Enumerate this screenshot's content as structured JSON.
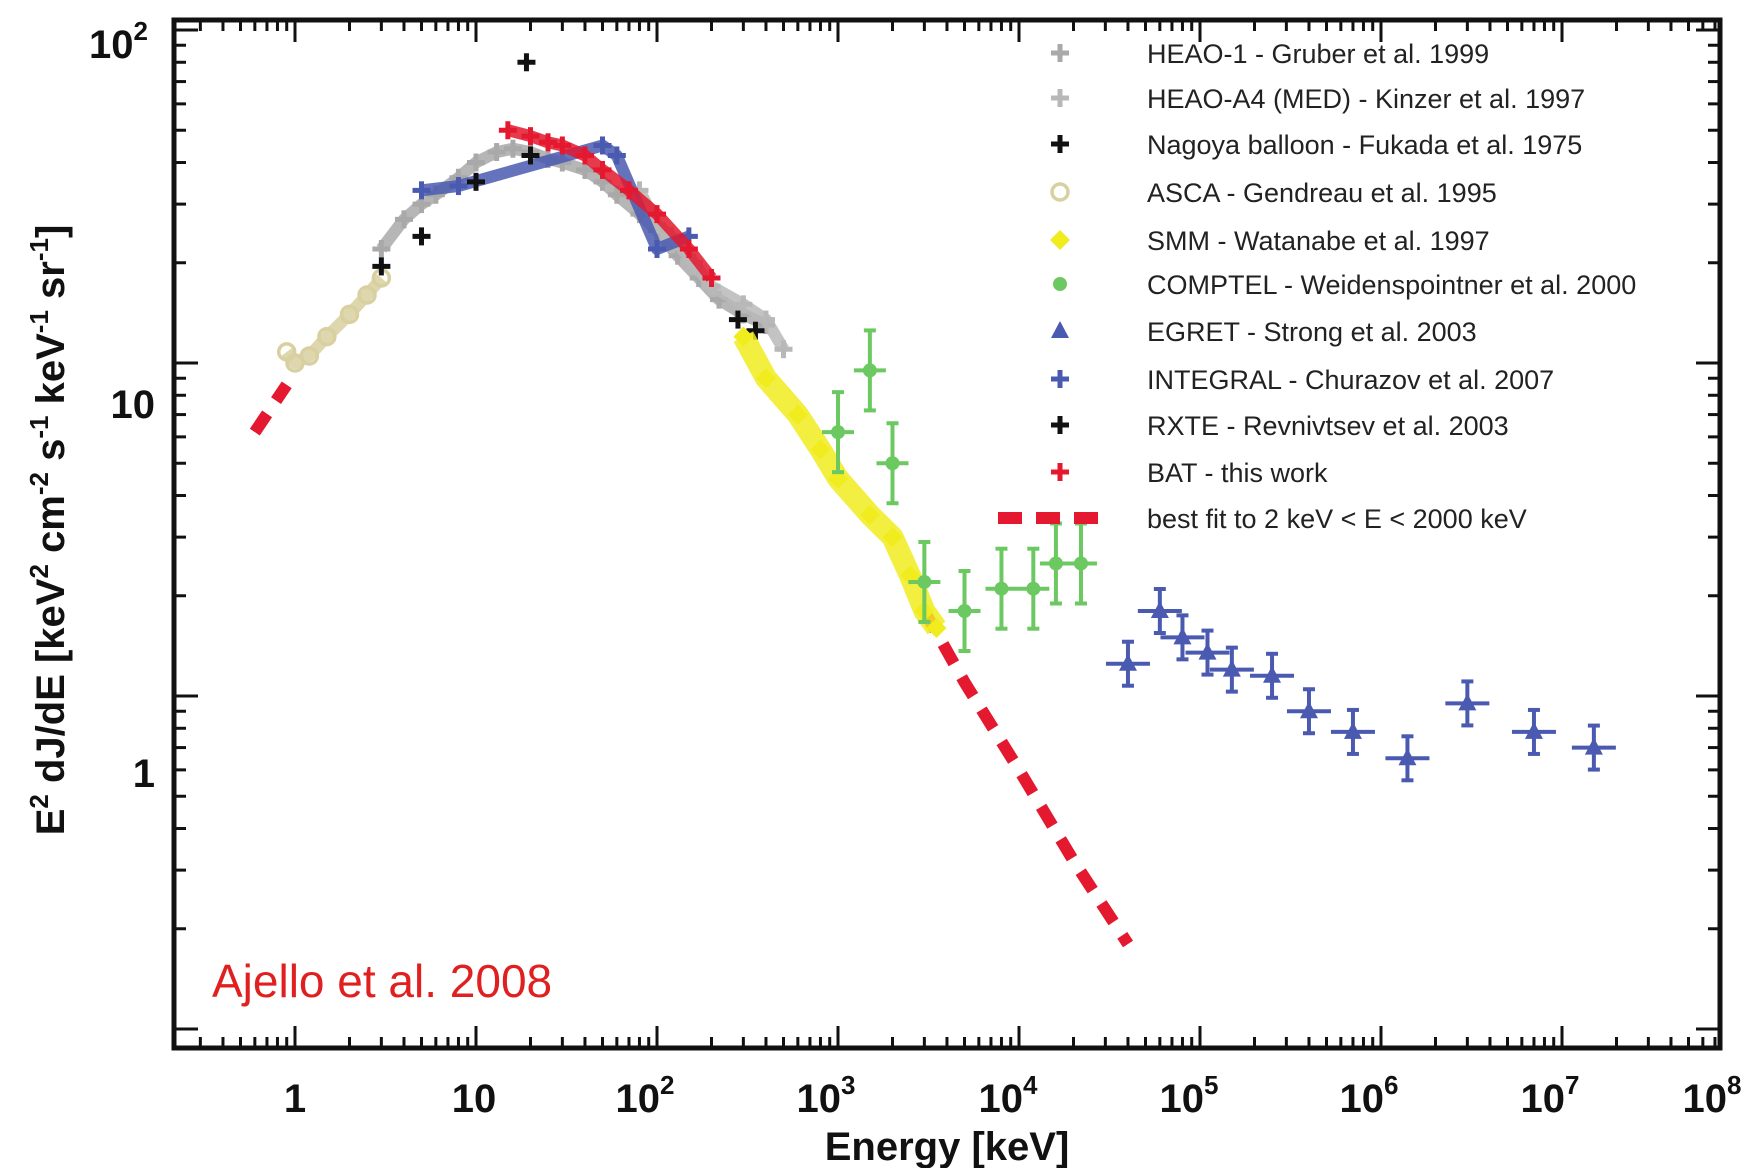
{
  "chart_data": {
    "type": "scatter",
    "title": "",
    "xlabel": "Energy [keV]",
    "ylabel_parts": {
      "a": "E",
      "a_sup": "2",
      "b": " dJ/dE [keV",
      "b_sup": "2",
      "c": " cm",
      "c_sup": "-2",
      "d": " s",
      "d_sup": "-1",
      "e": " keV",
      "e_sup": "-1",
      "f": " sr",
      "f_sup": "-1",
      "g": "]"
    },
    "xscale": "log",
    "yscale": "log",
    "xlim": [
      0.15,
      100000000
    ],
    "ylim": [
      0.18,
      100
    ],
    "x_ticks": [
      {
        "base": "1",
        "exp": ""
      },
      {
        "base": "10",
        "exp": ""
      },
      {
        "base": "10",
        "exp": "2"
      },
      {
        "base": "10",
        "exp": "3"
      },
      {
        "base": "10",
        "exp": "4"
      },
      {
        "base": "10",
        "exp": "5"
      },
      {
        "base": "10",
        "exp": "6"
      },
      {
        "base": "10",
        "exp": "7"
      },
      {
        "base": "10",
        "exp": "8"
      }
    ],
    "y_ticks": [
      {
        "base": "10",
        "exp": "2"
      },
      {
        "base": "10",
        "exp": ""
      },
      {
        "base": "1",
        "exp": ""
      }
    ],
    "legend_position": "top-right",
    "annotation": "Ajello et al. 2008",
    "series": [
      {
        "name": "HEAO-1 - Gruber et al. 1999",
        "marker": "plus",
        "color": "#a9a9a9",
        "points": [
          [
            3,
            22
          ],
          [
            4,
            27
          ],
          [
            5,
            30
          ],
          [
            6,
            32
          ],
          [
            8,
            36
          ],
          [
            10,
            40
          ],
          [
            13,
            43
          ],
          [
            16,
            44
          ],
          [
            20,
            43
          ],
          [
            25,
            41
          ],
          [
            30,
            40
          ],
          [
            40,
            38
          ],
          [
            50,
            35
          ],
          [
            60,
            32
          ],
          [
            80,
            28
          ],
          [
            100,
            25
          ],
          [
            130,
            21
          ],
          [
            170,
            18
          ],
          [
            220,
            15.5
          ],
          [
            300,
            14
          ],
          [
            400,
            13
          ]
        ]
      },
      {
        "name": "HEAO-A4 (MED) - Kinzer et al. 1997",
        "marker": "plus",
        "color": "#b8b8b8",
        "points": [
          [
            80,
            33
          ],
          [
            100,
            26
          ],
          [
            120,
            24
          ],
          [
            160,
            20
          ],
          [
            200,
            17
          ],
          [
            300,
            15
          ],
          [
            400,
            13.5
          ],
          [
            500,
            11
          ]
        ]
      },
      {
        "name": "Nagoya balloon - Fukada et al. 1975",
        "marker": "plus",
        "color": "#111111",
        "points": [
          [
            19,
            80
          ],
          [
            280,
            13.5
          ],
          [
            350,
            12.5
          ]
        ]
      },
      {
        "name": "ASCA - Gendreau et al. 1995",
        "marker": "circle",
        "color": "#d8d0a0",
        "points": [
          [
            0.9,
            10.8
          ],
          [
            1,
            10
          ],
          [
            1.2,
            10.5
          ],
          [
            1.5,
            12
          ],
          [
            2,
            14
          ],
          [
            2.5,
            16
          ],
          [
            3,
            18
          ]
        ]
      },
      {
        "name": "SMM - Watanabe et al. 1997",
        "marker": "diamond",
        "color": "#f0ec1e",
        "points": [
          [
            300,
            12
          ],
          [
            400,
            9
          ],
          [
            600,
            7
          ],
          [
            800,
            5.5
          ],
          [
            1000,
            4.5
          ],
          [
            1500,
            3.5
          ],
          [
            2000,
            3
          ],
          [
            2500,
            2.3
          ],
          [
            3000,
            1.8
          ],
          [
            3500,
            1.6
          ]
        ]
      },
      {
        "name": "COMPTEL - Weidenspointner et al. 2000",
        "marker": "dot",
        "color": "#6cc860",
        "points": [
          [
            1000,
            6.2
          ],
          [
            1500,
            9.5
          ],
          [
            2000,
            5
          ],
          [
            3000,
            2.2
          ],
          [
            5000,
            1.8
          ],
          [
            8000,
            2.1
          ],
          [
            12000,
            2.1
          ],
          [
            16000,
            2.5
          ],
          [
            22000,
            2.5
          ]
        ]
      },
      {
        "name": "EGRET - Strong et al. 2003",
        "marker": "triangle",
        "color": "#4a5ab0",
        "points": [
          [
            40000,
            1.25
          ],
          [
            60000,
            1.8
          ],
          [
            80000,
            1.5
          ],
          [
            110000,
            1.35
          ],
          [
            150000,
            1.2
          ],
          [
            250000,
            1.15
          ],
          [
            400000,
            0.9
          ],
          [
            700000,
            0.78
          ],
          [
            1400000,
            0.65
          ],
          [
            3000000,
            0.95
          ],
          [
            7000000,
            0.78
          ],
          [
            15000000,
            0.7
          ]
        ]
      },
      {
        "name": "INTEGRAL - Churazov et al. 2007",
        "marker": "plus",
        "color": "#4a5ab0",
        "points": [
          [
            5,
            33
          ],
          [
            8,
            34
          ],
          [
            50,
            45
          ],
          [
            60,
            42
          ],
          [
            100,
            22
          ],
          [
            150,
            24
          ]
        ]
      },
      {
        "name": "RXTE - Revnivtsev et al. 2003",
        "marker": "plus",
        "color": "#111111",
        "points": [
          [
            3,
            19.5
          ],
          [
            5,
            24
          ],
          [
            10,
            35
          ],
          [
            20,
            42
          ]
        ]
      },
      {
        "name": "BAT - this work",
        "marker": "plus",
        "color": "#e4182e",
        "points": [
          [
            15,
            50
          ],
          [
            20,
            48
          ],
          [
            25,
            46
          ],
          [
            30,
            45
          ],
          [
            40,
            42
          ],
          [
            50,
            38
          ],
          [
            70,
            33
          ],
          [
            100,
            28
          ],
          [
            150,
            22
          ],
          [
            200,
            18
          ]
        ]
      },
      {
        "name": "best fit to 2 keV < E < 2000 keV",
        "marker": "dashed-line",
        "color": "#e4182e",
        "points": [
          [
            0.6,
            6.2
          ],
          [
            0.9,
            8.6
          ],
          [
            3000,
            1.8
          ],
          [
            5000,
            1.1
          ],
          [
            10000,
            0.6
          ],
          [
            20000,
            0.32
          ],
          [
            40000,
            0.18
          ]
        ]
      }
    ]
  }
}
